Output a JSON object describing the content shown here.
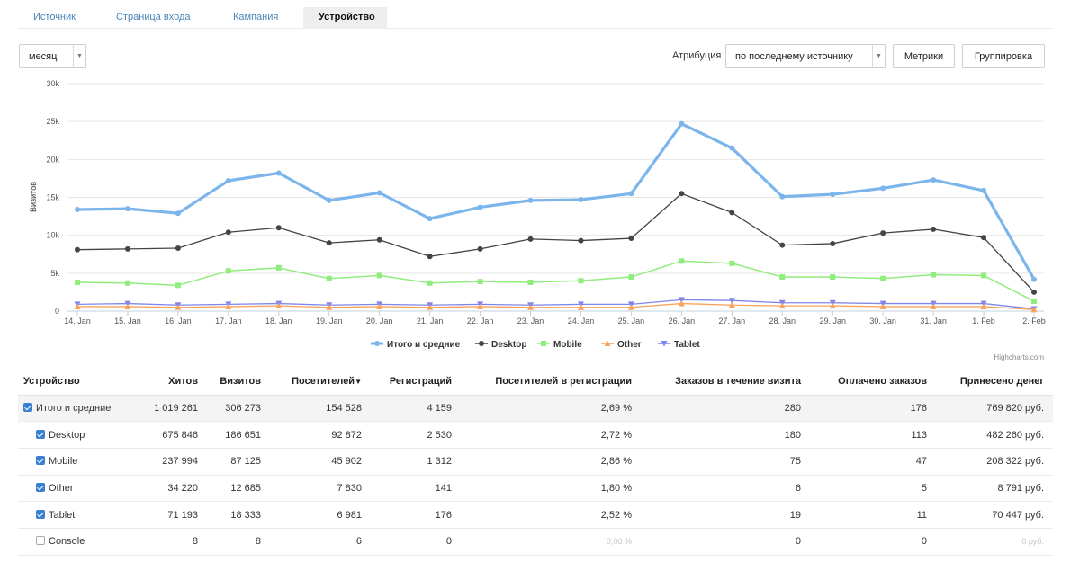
{
  "tabs": [
    {
      "label": "Источник",
      "active": false
    },
    {
      "label": "Страница входа",
      "active": false
    },
    {
      "label": "Кампания",
      "active": false
    },
    {
      "label": "Устройство",
      "active": true
    }
  ],
  "controls": {
    "period_value": "месяц",
    "attribution_label": "Атрибуция",
    "attribution_value": "по последнему источнику",
    "metrics_button": "Метрики",
    "grouping_button": "Группировка"
  },
  "credit": "Highcharts.com",
  "chart_data": {
    "type": "line",
    "ylabel": "Визитов",
    "ylim": [
      0,
      30000
    ],
    "yticks": [
      {
        "value": 0,
        "label": "0"
      },
      {
        "value": 5000,
        "label": "5k"
      },
      {
        "value": 10000,
        "label": "10k"
      },
      {
        "value": 15000,
        "label": "15k"
      },
      {
        "value": 20000,
        "label": "20k"
      },
      {
        "value": 25000,
        "label": "25k"
      },
      {
        "value": 30000,
        "label": "30k"
      }
    ],
    "categories": [
      "14. Jan",
      "15. Jan",
      "16. Jan",
      "17. Jan",
      "18. Jan",
      "19. Jan",
      "20. Jan",
      "21. Jan",
      "22. Jan",
      "23. Jan",
      "24. Jan",
      "25. Jan",
      "26. Jan",
      "27. Jan",
      "28. Jan",
      "29. Jan",
      "30. Jan",
      "31. Jan",
      "1. Feb",
      "2. Feb"
    ],
    "legend_position": "bottom",
    "series": [
      {
        "name": "Итого и средние",
        "color": "#7cb5ec",
        "marker": "circle",
        "width": 3.2,
        "values": [
          13400,
          13500,
          12900,
          17200,
          18200,
          14600,
          15600,
          12200,
          13700,
          14600,
          14700,
          15500,
          24700,
          21500,
          15100,
          15400,
          16200,
          17300,
          15900,
          4200
        ]
      },
      {
        "name": "Desktop",
        "color": "#434348",
        "marker": "circle",
        "width": 1.3,
        "values": [
          8100,
          8200,
          8300,
          10400,
          11000,
          9000,
          9400,
          7200,
          8200,
          9500,
          9300,
          9600,
          15500,
          13000,
          8700,
          8900,
          10300,
          10800,
          9700,
          2500
        ]
      },
      {
        "name": "Mobile",
        "color": "#90ed7d",
        "marker": "square",
        "width": 1.5,
        "values": [
          3800,
          3700,
          3400,
          5300,
          5700,
          4300,
          4700,
          3700,
          3900,
          3800,
          4000,
          4500,
          6600,
          6300,
          4500,
          4500,
          4300,
          4800,
          4700,
          1300
        ]
      },
      {
        "name": "Other",
        "color": "#f7a35c",
        "marker": "triangle",
        "width": 1.3,
        "values": [
          600,
          600,
          500,
          600,
          700,
          500,
          600,
          500,
          600,
          500,
          500,
          500,
          1000,
          800,
          700,
          700,
          600,
          600,
          600,
          200
        ]
      },
      {
        "name": "Tablet",
        "color": "#8085e9",
        "marker": "triangle-down",
        "width": 1.3,
        "values": [
          900,
          1000,
          800,
          900,
          1000,
          800,
          900,
          800,
          900,
          800,
          900,
          900,
          1500,
          1400,
          1100,
          1100,
          1000,
          1000,
          1000,
          300
        ]
      }
    ]
  },
  "table": {
    "headers": [
      "Устройство",
      "Хитов",
      "Визитов",
      "Посетителей",
      "Регистраций",
      "Посетителей в регистрации",
      "Заказов в течение визита",
      "Оплачено заказов",
      "Принесено денег"
    ],
    "sort_indicator": "▼",
    "rows": [
      {
        "cells": [
          "Итого и средние",
          "1 019 261",
          "306 273",
          "154 528",
          "4 159",
          "2,69 %",
          "280",
          "176",
          "769 820 руб."
        ],
        "checked": true,
        "kind": "total"
      },
      {
        "cells": [
          "Desktop",
          "675 846",
          "186 651",
          "92 872",
          "2 530",
          "2,72 %",
          "180",
          "113",
          "482 260 руб."
        ],
        "checked": true,
        "kind": "child"
      },
      {
        "cells": [
          "Mobile",
          "237 994",
          "87 125",
          "45 902",
          "1 312",
          "2,86 %",
          "75",
          "47",
          "208 322 руб."
        ],
        "checked": true,
        "kind": "child"
      },
      {
        "cells": [
          "Other",
          "34 220",
          "12 685",
          "7 830",
          "141",
          "1,80 %",
          "6",
          "5",
          "8 791 руб."
        ],
        "checked": true,
        "kind": "child"
      },
      {
        "cells": [
          "Tablet",
          "71 193",
          "18 333",
          "6 981",
          "176",
          "2,52 %",
          "19",
          "11",
          "70 447 руб."
        ],
        "checked": true,
        "kind": "child"
      },
      {
        "cells": [
          "Console",
          "8",
          "8",
          "6",
          "0",
          "0,00 %",
          "0",
          "0",
          "0 руб."
        ],
        "checked": false,
        "kind": "child"
      }
    ]
  }
}
